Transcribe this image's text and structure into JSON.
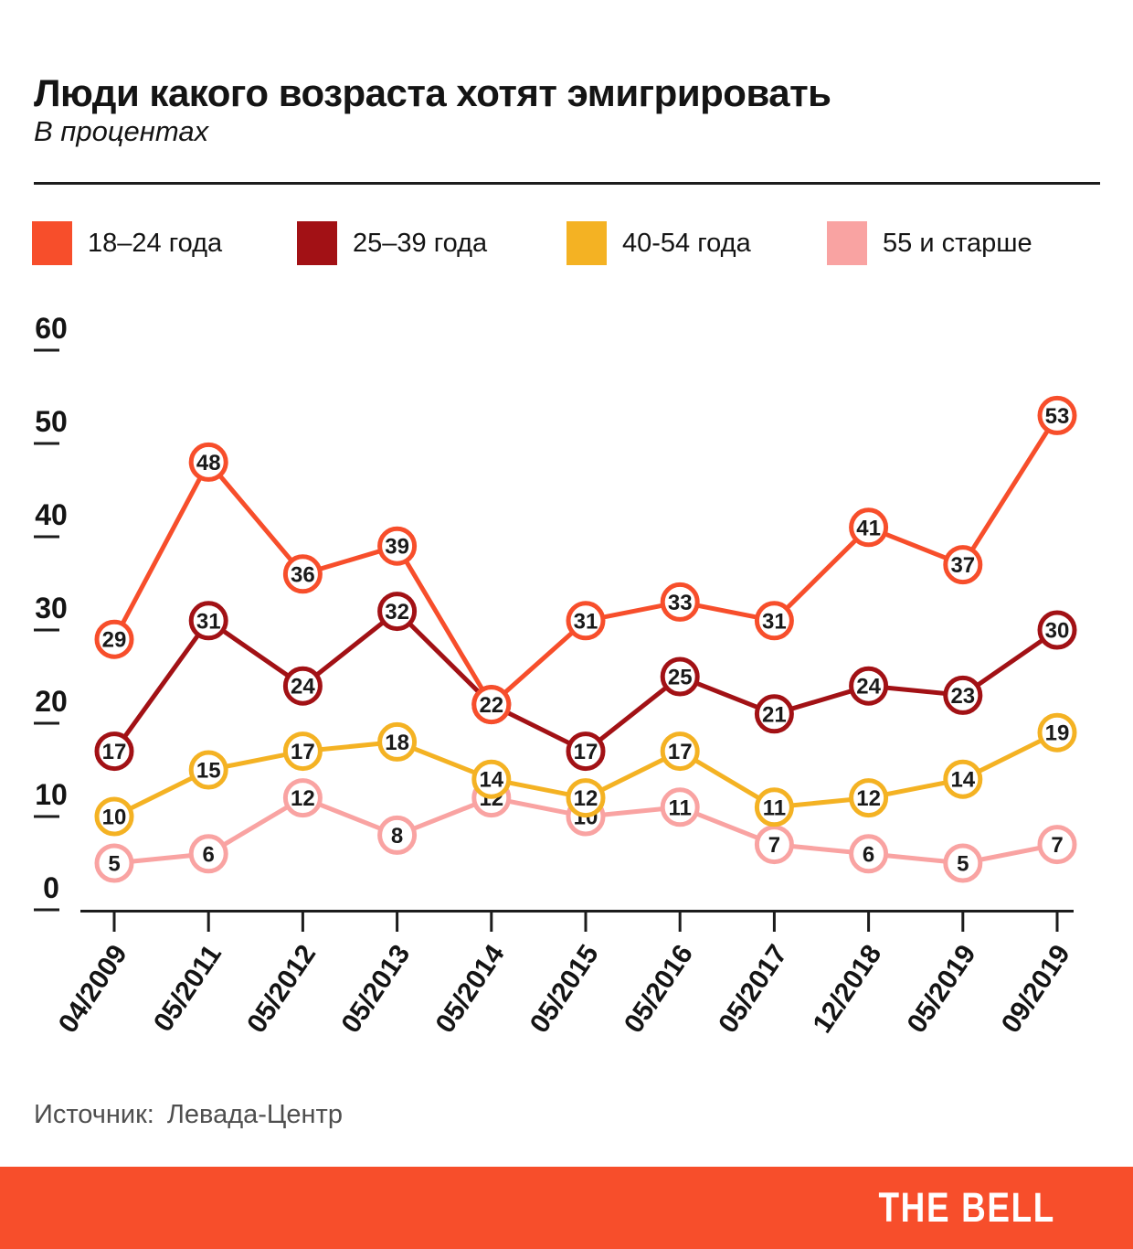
{
  "header": {
    "title": "Люди какого возраста хотят эмигрировать",
    "subtitle": "В процентах"
  },
  "legend": [
    {
      "label": "18–24 года",
      "color": "#F74E2B"
    },
    {
      "label": "25–39 года",
      "color": "#A21115"
    },
    {
      "label": "40-54 года",
      "color": "#F4B223"
    },
    {
      "label": "55 и старше",
      "color": "#F9A3A2"
    }
  ],
  "chart_data": {
    "type": "line",
    "title": "Люди какого возраста хотят эмигрировать",
    "subtitle": "В процентах",
    "xlabel": "",
    "ylabel": "",
    "x": [
      "04/2009",
      "05/2011",
      "05/2012",
      "05/2013",
      "05/2014",
      "05/2015",
      "05/2016",
      "05/2017",
      "12/2018",
      "05/2019",
      "09/2019"
    ],
    "series": [
      {
        "name": "18–24 года",
        "color": "#F74E2B",
        "values": [
          29,
          48,
          36,
          39,
          22,
          31,
          33,
          31,
          41,
          37,
          53
        ]
      },
      {
        "name": "25–39 года",
        "color": "#A21115",
        "values": [
          17,
          31,
          24,
          32,
          22,
          17,
          25,
          21,
          24,
          23,
          30
        ]
      },
      {
        "name": "40-54 года",
        "color": "#F4B223",
        "values": [
          10,
          15,
          17,
          18,
          14,
          12,
          17,
          11,
          12,
          14,
          19
        ]
      },
      {
        "name": "55 и старше",
        "color": "#F9A3A2",
        "values": [
          5,
          6,
          12,
          8,
          12,
          10,
          11,
          7,
          6,
          5,
          7
        ]
      }
    ],
    "ylim": [
      0,
      60
    ],
    "yticks": [
      0,
      10,
      20,
      30,
      40,
      50,
      60
    ],
    "grid": false,
    "marker_labels": true,
    "legend_position": "top"
  },
  "footer": {
    "source_label": "Источник:",
    "source_value": "Левада-Центр",
    "brand": "THE BELL",
    "bar_color": "#F74E2B"
  }
}
